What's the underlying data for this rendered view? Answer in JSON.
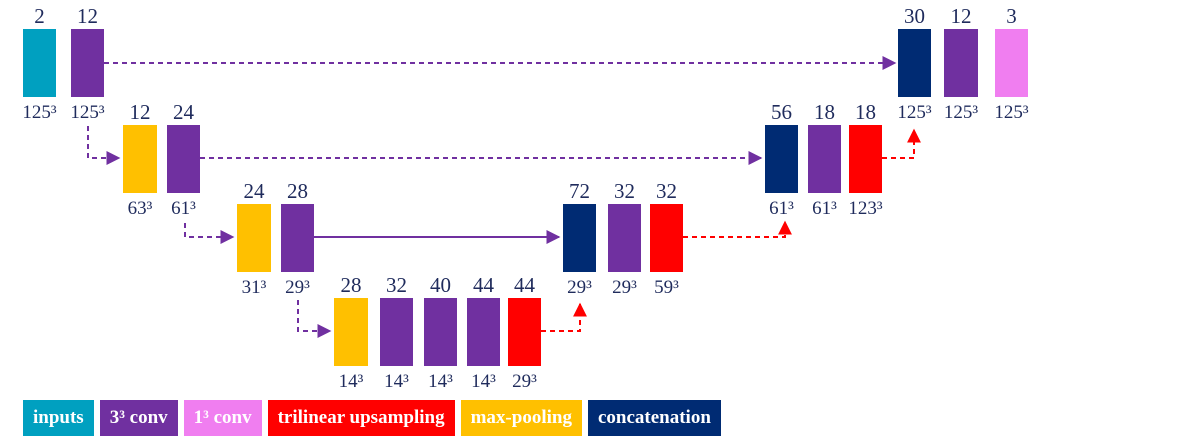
{
  "colors": {
    "inputs": "#00a0c0",
    "conv3": "#7030a0",
    "conv1": "#f07ef0",
    "upsampling": "#ff0000",
    "maxpool": "#ffc000",
    "concat": "#002b73",
    "text": "#1f2b5c"
  },
  "blocks": [
    {
      "id": "b1",
      "type": "inputs",
      "channels": "2",
      "size": "125³"
    },
    {
      "id": "b2",
      "type": "conv3",
      "channels": "12",
      "size": "125³"
    },
    {
      "id": "b3",
      "type": "maxpool",
      "channels": "12",
      "size": "63³"
    },
    {
      "id": "b4",
      "type": "conv3",
      "channels": "24",
      "size": "61³"
    },
    {
      "id": "b5",
      "type": "maxpool",
      "channels": "24",
      "size": "31³"
    },
    {
      "id": "b6",
      "type": "conv3",
      "channels": "28",
      "size": "29³"
    },
    {
      "id": "b7",
      "type": "maxpool",
      "channels": "28",
      "size": "14³"
    },
    {
      "id": "b8",
      "type": "conv3",
      "channels": "32",
      "size": "14³"
    },
    {
      "id": "b9",
      "type": "conv3",
      "channels": "40",
      "size": "14³"
    },
    {
      "id": "b10",
      "type": "conv3",
      "channels": "44",
      "size": "14³"
    },
    {
      "id": "b11",
      "type": "upsampling",
      "channels": "44",
      "size": "29³"
    },
    {
      "id": "b12",
      "type": "concat",
      "channels": "72",
      "size": "29³"
    },
    {
      "id": "b13",
      "type": "conv3",
      "channels": "32",
      "size": "29³"
    },
    {
      "id": "b14",
      "type": "upsampling",
      "channels": "32",
      "size": "59³"
    },
    {
      "id": "b15",
      "type": "concat",
      "channels": "56",
      "size": "61³"
    },
    {
      "id": "b16",
      "type": "conv3",
      "channels": "18",
      "size": "61³"
    },
    {
      "id": "b17",
      "type": "upsampling",
      "channels": "18",
      "size": "123³"
    },
    {
      "id": "b18",
      "type": "concat",
      "channels": "30",
      "size": "125³"
    },
    {
      "id": "b19",
      "type": "conv3",
      "channels": "12",
      "size": "125³"
    },
    {
      "id": "b20",
      "type": "conv1",
      "channels": "3",
      "size": "125³"
    }
  ],
  "legend": [
    {
      "type": "inputs",
      "label": "inputs"
    },
    {
      "type": "conv3",
      "label": "3³ conv"
    },
    {
      "type": "conv1",
      "label": "1³ conv"
    },
    {
      "type": "upsampling",
      "label": "trilinear upsampling"
    },
    {
      "type": "maxpool",
      "label": "max-pooling"
    },
    {
      "type": "concat",
      "label": "concatenation"
    }
  ]
}
